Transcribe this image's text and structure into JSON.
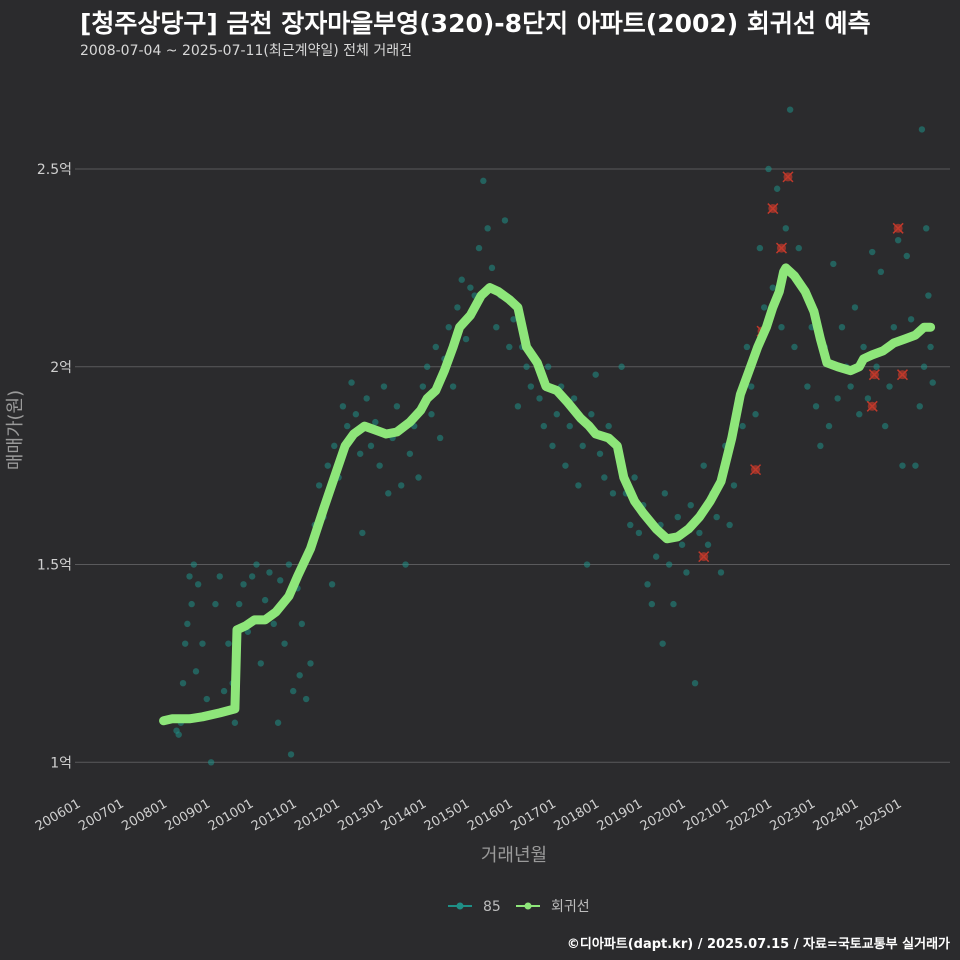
{
  "header": {
    "title": "[청주상당구] 금천 장자마을부영(320)-8단지 아파트(2002) 회귀선 예측",
    "subtitle": "2008-07-04 ~ 2025-07-11(최근계약일) 전체 거래건"
  },
  "caption": "©디아파트(dapt.kr) / 2025.07.15 / 자료=국토교통부 실거래가",
  "colors": {
    "background": "#2b2b2d",
    "grid": "#5a5a5c",
    "points": "#1f8f86",
    "regression": "#8ee67a",
    "outlier": "#c0392b"
  },
  "chart_data": {
    "type": "scatter",
    "xlabel": "거래년월",
    "ylabel": "매매가(원)",
    "x_range": [
      2005.85,
      2026.1
    ],
    "ylim": [
      0.93,
      2.73
    ],
    "y_unit": "억",
    "yticks": [
      {
        "value": 1.0,
        "label": "1억"
      },
      {
        "value": 1.5,
        "label": "1.5억"
      },
      {
        "value": 2.0,
        "label": "2억"
      },
      {
        "value": 2.5,
        "label": "2.5억"
      }
    ],
    "xticks": [
      "200601",
      "200701",
      "200801",
      "200901",
      "201001",
      "201101",
      "201201",
      "201301",
      "201401",
      "201501",
      "201601",
      "201701",
      "201801",
      "201901",
      "202001",
      "202101",
      "202201",
      "202301",
      "202401",
      "202501"
    ],
    "legend": [
      {
        "label": "85",
        "kind": "point"
      },
      {
        "label": "회귀선",
        "kind": "line"
      }
    ],
    "regression_line": [
      [
        2007.9,
        1.105
      ],
      [
        2008.1,
        1.11
      ],
      [
        2008.5,
        1.11
      ],
      [
        2008.8,
        1.115
      ],
      [
        2009.2,
        1.125
      ],
      [
        2009.55,
        1.135
      ],
      [
        2009.6,
        1.335
      ],
      [
        2009.8,
        1.345
      ],
      [
        2010.0,
        1.36
      ],
      [
        2010.25,
        1.36
      ],
      [
        2010.5,
        1.38
      ],
      [
        2010.8,
        1.42
      ],
      [
        2011.0,
        1.47
      ],
      [
        2011.3,
        1.54
      ],
      [
        2011.6,
        1.64
      ],
      [
        2011.85,
        1.72
      ],
      [
        2012.1,
        1.8
      ],
      [
        2012.3,
        1.83
      ],
      [
        2012.55,
        1.85
      ],
      [
        2012.8,
        1.84
      ],
      [
        2013.05,
        1.83
      ],
      [
        2013.3,
        1.835
      ],
      [
        2013.6,
        1.86
      ],
      [
        2013.85,
        1.89
      ],
      [
        2014.0,
        1.92
      ],
      [
        2014.2,
        1.94
      ],
      [
        2014.4,
        1.99
      ],
      [
        2014.6,
        2.05
      ],
      [
        2014.75,
        2.1
      ],
      [
        2015.0,
        2.13
      ],
      [
        2015.25,
        2.18
      ],
      [
        2015.45,
        2.2
      ],
      [
        2015.65,
        2.19
      ],
      [
        2015.9,
        2.17
      ],
      [
        2016.1,
        2.15
      ],
      [
        2016.3,
        2.05
      ],
      [
        2016.55,
        2.01
      ],
      [
        2016.75,
        1.95
      ],
      [
        2017.0,
        1.94
      ],
      [
        2017.25,
        1.91
      ],
      [
        2017.55,
        1.87
      ],
      [
        2017.75,
        1.85
      ],
      [
        2017.9,
        1.83
      ],
      [
        2018.2,
        1.82
      ],
      [
        2018.4,
        1.8
      ],
      [
        2018.55,
        1.72
      ],
      [
        2018.8,
        1.66
      ],
      [
        2019.0,
        1.63
      ],
      [
        2019.3,
        1.59
      ],
      [
        2019.55,
        1.565
      ],
      [
        2019.8,
        1.57
      ],
      [
        2020.05,
        1.59
      ],
      [
        2020.3,
        1.62
      ],
      [
        2020.55,
        1.66
      ],
      [
        2020.8,
        1.71
      ],
      [
        2021.05,
        1.82
      ],
      [
        2021.25,
        1.93
      ],
      [
        2021.45,
        1.99
      ],
      [
        2021.65,
        2.05
      ],
      [
        2021.85,
        2.1
      ],
      [
        2022.0,
        2.15
      ],
      [
        2022.15,
        2.19
      ],
      [
        2022.25,
        2.24
      ],
      [
        2022.3,
        2.25
      ],
      [
        2022.5,
        2.23
      ],
      [
        2022.75,
        2.19
      ],
      [
        2022.95,
        2.14
      ],
      [
        2023.1,
        2.07
      ],
      [
        2023.25,
        2.01
      ],
      [
        2023.5,
        2.0
      ],
      [
        2023.8,
        1.99
      ],
      [
        2024.0,
        2.0
      ],
      [
        2024.1,
        2.02
      ],
      [
        2024.3,
        2.03
      ],
      [
        2024.55,
        2.04
      ],
      [
        2024.8,
        2.06
      ],
      [
        2025.05,
        2.07
      ],
      [
        2025.3,
        2.08
      ],
      [
        2025.5,
        2.1
      ],
      [
        2025.65,
        2.1
      ]
    ],
    "flagged_points": [
      [
        2021.75,
        2.09
      ],
      [
        2021.6,
        1.74
      ],
      [
        2020.4,
        1.52
      ],
      [
        2022.0,
        2.4
      ],
      [
        2022.2,
        2.3
      ],
      [
        2022.35,
        2.48
      ],
      [
        2024.3,
        1.9
      ],
      [
        2024.35,
        1.98
      ],
      [
        2024.9,
        2.35
      ],
      [
        2025.0,
        1.98
      ]
    ],
    "scatter_points": [
      [
        2008.2,
        1.08
      ],
      [
        2008.25,
        1.07
      ],
      [
        2008.3,
        1.1
      ],
      [
        2008.35,
        1.2
      ],
      [
        2008.4,
        1.3
      ],
      [
        2008.45,
        1.35
      ],
      [
        2008.5,
        1.47
      ],
      [
        2008.55,
        1.4
      ],
      [
        2008.6,
        1.5
      ],
      [
        2008.65,
        1.23
      ],
      [
        2008.7,
        1.45
      ],
      [
        2008.8,
        1.3
      ],
      [
        2008.9,
        1.16
      ],
      [
        2009.0,
        1.0
      ],
      [
        2009.1,
        1.4
      ],
      [
        2009.2,
        1.47
      ],
      [
        2009.3,
        1.18
      ],
      [
        2009.4,
        1.3
      ],
      [
        2009.5,
        1.2
      ],
      [
        2009.55,
        1.1
      ],
      [
        2009.65,
        1.4
      ],
      [
        2009.75,
        1.45
      ],
      [
        2009.85,
        1.33
      ],
      [
        2009.95,
        1.47
      ],
      [
        2010.05,
        1.5
      ],
      [
        2010.15,
        1.25
      ],
      [
        2010.25,
        1.41
      ],
      [
        2010.35,
        1.48
      ],
      [
        2010.45,
        1.35
      ],
      [
        2010.55,
        1.1
      ],
      [
        2010.6,
        1.46
      ],
      [
        2010.7,
        1.3
      ],
      [
        2010.8,
        1.5
      ],
      [
        2010.85,
        1.02
      ],
      [
        2010.9,
        1.18
      ],
      [
        2011.0,
        1.44
      ],
      [
        2011.05,
        1.22
      ],
      [
        2011.1,
        1.35
      ],
      [
        2011.2,
        1.16
      ],
      [
        2011.25,
        1.52
      ],
      [
        2011.3,
        1.25
      ],
      [
        2011.4,
        1.6
      ],
      [
        2011.5,
        1.7
      ],
      [
        2011.6,
        1.62
      ],
      [
        2011.7,
        1.75
      ],
      [
        2011.8,
        1.45
      ],
      [
        2011.85,
        1.8
      ],
      [
        2011.95,
        1.72
      ],
      [
        2012.05,
        1.9
      ],
      [
        2012.15,
        1.85
      ],
      [
        2012.25,
        1.96
      ],
      [
        2012.35,
        1.88
      ],
      [
        2012.45,
        1.78
      ],
      [
        2012.5,
        1.58
      ],
      [
        2012.6,
        1.92
      ],
      [
        2012.7,
        1.8
      ],
      [
        2012.8,
        1.86
      ],
      [
        2012.9,
        1.75
      ],
      [
        2013.0,
        1.95
      ],
      [
        2013.1,
        1.68
      ],
      [
        2013.2,
        1.82
      ],
      [
        2013.3,
        1.9
      ],
      [
        2013.4,
        1.7
      ],
      [
        2013.5,
        1.5
      ],
      [
        2013.6,
        1.78
      ],
      [
        2013.7,
        1.85
      ],
      [
        2013.8,
        1.72
      ],
      [
        2013.9,
        1.95
      ],
      [
        2014.0,
        2.0
      ],
      [
        2014.1,
        1.88
      ],
      [
        2014.2,
        2.05
      ],
      [
        2014.3,
        1.82
      ],
      [
        2014.4,
        2.02
      ],
      [
        2014.5,
        2.1
      ],
      [
        2014.6,
        1.95
      ],
      [
        2014.7,
        2.15
      ],
      [
        2014.8,
        2.22
      ],
      [
        2014.9,
        2.07
      ],
      [
        2015.0,
        2.2
      ],
      [
        2015.1,
        2.18
      ],
      [
        2015.2,
        2.3
      ],
      [
        2015.3,
        2.47
      ],
      [
        2015.4,
        2.35
      ],
      [
        2015.5,
        2.25
      ],
      [
        2015.6,
        2.1
      ],
      [
        2015.7,
        2.18
      ],
      [
        2015.8,
        2.37
      ],
      [
        2015.9,
        2.05
      ],
      [
        2016.0,
        2.12
      ],
      [
        2016.1,
        1.9
      ],
      [
        2016.2,
        2.05
      ],
      [
        2016.3,
        2.0
      ],
      [
        2016.4,
        1.95
      ],
      [
        2016.5,
        2.02
      ],
      [
        2016.6,
        1.92
      ],
      [
        2016.7,
        1.85
      ],
      [
        2016.8,
        2.0
      ],
      [
        2016.9,
        1.8
      ],
      [
        2017.0,
        1.88
      ],
      [
        2017.1,
        1.95
      ],
      [
        2017.2,
        1.75
      ],
      [
        2017.3,
        1.85
      ],
      [
        2017.4,
        1.92
      ],
      [
        2017.5,
        1.7
      ],
      [
        2017.6,
        1.8
      ],
      [
        2017.7,
        1.5
      ],
      [
        2017.8,
        1.88
      ],
      [
        2017.9,
        1.98
      ],
      [
        2018.0,
        1.78
      ],
      [
        2018.1,
        1.72
      ],
      [
        2018.2,
        1.85
      ],
      [
        2018.3,
        1.68
      ],
      [
        2018.4,
        1.8
      ],
      [
        2018.5,
        2.0
      ],
      [
        2018.6,
        1.68
      ],
      [
        2018.7,
        1.6
      ],
      [
        2018.8,
        1.72
      ],
      [
        2018.9,
        1.58
      ],
      [
        2019.0,
        1.65
      ],
      [
        2019.1,
        1.45
      ],
      [
        2019.2,
        1.4
      ],
      [
        2019.3,
        1.52
      ],
      [
        2019.4,
        1.6
      ],
      [
        2019.45,
        1.3
      ],
      [
        2019.5,
        1.68
      ],
      [
        2019.6,
        1.5
      ],
      [
        2019.7,
        1.4
      ],
      [
        2019.8,
        1.62
      ],
      [
        2019.9,
        1.55
      ],
      [
        2020.0,
        1.48
      ],
      [
        2020.1,
        1.65
      ],
      [
        2020.2,
        1.2
      ],
      [
        2020.3,
        1.58
      ],
      [
        2020.4,
        1.75
      ],
      [
        2020.5,
        1.55
      ],
      [
        2020.6,
        1.68
      ],
      [
        2020.7,
        1.62
      ],
      [
        2020.8,
        1.48
      ],
      [
        2020.9,
        1.8
      ],
      [
        2021.0,
        1.6
      ],
      [
        2021.1,
        1.7
      ],
      [
        2021.2,
        1.92
      ],
      [
        2021.3,
        1.85
      ],
      [
        2021.4,
        2.05
      ],
      [
        2021.5,
        1.95
      ],
      [
        2021.6,
        1.88
      ],
      [
        2021.7,
        2.3
      ],
      [
        2021.8,
        2.15
      ],
      [
        2021.9,
        2.5
      ],
      [
        2022.0,
        2.2
      ],
      [
        2022.1,
        2.45
      ],
      [
        2022.2,
        2.1
      ],
      [
        2022.3,
        2.35
      ],
      [
        2022.4,
        2.65
      ],
      [
        2022.5,
        2.05
      ],
      [
        2022.6,
        2.3
      ],
      [
        2022.7,
        2.2
      ],
      [
        2022.8,
        1.95
      ],
      [
        2022.9,
        2.1
      ],
      [
        2023.0,
        1.9
      ],
      [
        2023.1,
        1.8
      ],
      [
        2023.2,
        2.05
      ],
      [
        2023.3,
        1.85
      ],
      [
        2023.4,
        2.26
      ],
      [
        2023.5,
        1.92
      ],
      [
        2023.6,
        2.1
      ],
      [
        2023.7,
        2.0
      ],
      [
        2023.8,
        1.95
      ],
      [
        2023.9,
        2.15
      ],
      [
        2024.0,
        1.88
      ],
      [
        2024.1,
        2.05
      ],
      [
        2024.2,
        1.92
      ],
      [
        2024.3,
        2.29
      ],
      [
        2024.4,
        2.0
      ],
      [
        2024.5,
        2.24
      ],
      [
        2024.6,
        1.85
      ],
      [
        2024.7,
        1.95
      ],
      [
        2024.8,
        2.1
      ],
      [
        2024.9,
        2.32
      ],
      [
        2025.0,
        1.75
      ],
      [
        2025.1,
        2.28
      ],
      [
        2025.2,
        2.12
      ],
      [
        2025.3,
        1.75
      ],
      [
        2025.4,
        1.9
      ],
      [
        2025.45,
        2.6
      ],
      [
        2025.5,
        2.0
      ],
      [
        2025.55,
        2.35
      ],
      [
        2025.6,
        2.18
      ],
      [
        2025.65,
        2.05
      ],
      [
        2025.7,
        1.96
      ]
    ]
  }
}
